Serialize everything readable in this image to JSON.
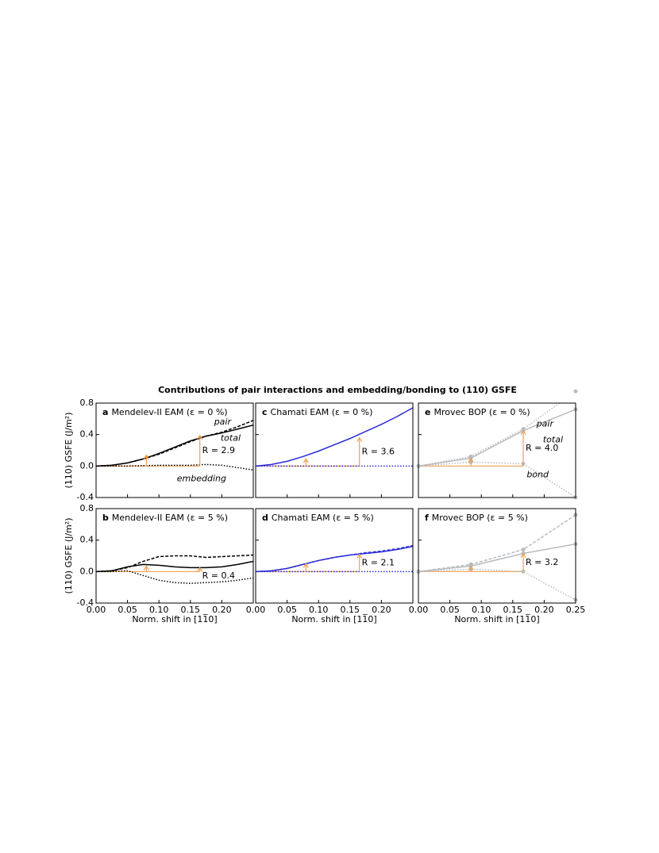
{
  "title": "Contributions of pair interactions and embedding/bonding to (110) GSFE",
  "chart_data": [
    {
      "type": "line",
      "label": "a",
      "title": "Mendelev-II EAM (ε = 0 %)",
      "ylabel": "(110) GSFE (J/m²)",
      "x": [
        0,
        0.025,
        0.05,
        0.075,
        0.1,
        0.125,
        0.15,
        0.175,
        0.2,
        0.225,
        0.25
      ],
      "xlim": [
        0,
        0.25
      ],
      "ylim": [
        -0.4,
        0.8
      ],
      "yticks": [
        {
          "value": 0.8,
          "label": "0.8"
        },
        {
          "value": 0.4,
          "label": "0.4"
        },
        {
          "value": 0,
          "label": "0.0"
        },
        {
          "value": -0.4,
          "label": "-0.4"
        }
      ],
      "series": [
        {
          "name": "total",
          "color": "#000000",
          "style": "solid",
          "values": [
            0,
            0.01,
            0.04,
            0.09,
            0.16,
            0.24,
            0.32,
            0.38,
            0.42,
            0.47,
            0.52
          ]
        },
        {
          "name": "pair",
          "color": "#000000",
          "style": "dashed",
          "values": [
            0,
            0.01,
            0.04,
            0.09,
            0.15,
            0.23,
            0.31,
            0.38,
            0.43,
            0.5,
            0.58
          ]
        },
        {
          "name": "embedding",
          "color": "#000000",
          "style": "dotted",
          "values": [
            0,
            0,
            0,
            0.005,
            0.01,
            0.01,
            0.01,
            0.02,
            0.01,
            -0.02,
            -0.05
          ]
        }
      ],
      "arrows": [
        {
          "x": 0.08,
          "y": [
            0,
            0.14
          ]
        },
        {
          "x": 0.165,
          "y": [
            0,
            0.39
          ]
        }
      ],
      "arrow_color": "#f0a050",
      "annotation": "R = 2.9"
    },
    {
      "type": "line",
      "label": "b",
      "title": "Mendelev-II EAM (ε = 5 %)",
      "ylabel": "(110) GSFE (J/m²)",
      "xlabel": "Norm. shift in [11̅0]",
      "x": [
        0,
        0.025,
        0.05,
        0.075,
        0.1,
        0.125,
        0.15,
        0.175,
        0.2,
        0.225,
        0.25
      ],
      "xlim": [
        0,
        0.25
      ],
      "ylim": [
        -0.4,
        0.8
      ],
      "yticks": [
        {
          "value": 0.8,
          "label": "0.8"
        },
        {
          "value": 0.4,
          "label": "0.4"
        },
        {
          "value": 0,
          "label": "0.0"
        },
        {
          "value": -0.4,
          "label": "-0.4"
        }
      ],
      "xticks": [
        {
          "value": 0,
          "label": "0.00"
        },
        {
          "value": 0.05,
          "label": "0.05"
        },
        {
          "value": 0.1,
          "label": "0.10"
        },
        {
          "value": 0.15,
          "label": "0.15"
        },
        {
          "value": 0.2,
          "label": "0.20"
        }
      ],
      "series": [
        {
          "color": "#000000",
          "style": "solid",
          "values": [
            0,
            0.01,
            0.06,
            0.09,
            0.08,
            0.06,
            0.05,
            0.05,
            0.06,
            0.09,
            0.13
          ]
        },
        {
          "color": "#000000",
          "style": "dashed",
          "values": [
            0,
            0.01,
            0.05,
            0.13,
            0.19,
            0.2,
            0.2,
            0.18,
            0.19,
            0.2,
            0.21
          ]
        },
        {
          "color": "#000000",
          "style": "dotted",
          "values": [
            0,
            0,
            0.01,
            -0.05,
            -0.11,
            -0.14,
            -0.15,
            -0.14,
            -0.13,
            -0.11,
            -0.08
          ]
        }
      ],
      "arrows": [
        {
          "x": 0.08,
          "y": [
            0,
            0.07
          ]
        },
        {
          "x": 0.165,
          "y": [
            0,
            0.05
          ]
        }
      ],
      "arrow_color": "#f0a050",
      "annotation": "R = 0.4"
    },
    {
      "type": "line",
      "label": "c",
      "title": "Chamati EAM (ε = 0 %)",
      "x": [
        0,
        0.025,
        0.05,
        0.075,
        0.1,
        0.125,
        0.15,
        0.175,
        0.2,
        0.225,
        0.25
      ],
      "xlim": [
        0,
        0.25
      ],
      "ylim": [
        -0.4,
        0.8
      ],
      "series": [
        {
          "color": "#2b2bdb",
          "style": "solid",
          "values": [
            0,
            0.02,
            0.06,
            0.12,
            0.19,
            0.27,
            0.35,
            0.44,
            0.53,
            0.63,
            0.74
          ]
        },
        {
          "color": "#2b2bdb",
          "style": "dotted",
          "values": [
            0,
            0,
            0,
            0,
            0,
            0,
            0,
            0,
            0,
            0,
            0
          ]
        }
      ],
      "arrows": [
        {
          "x": 0.08,
          "y": [
            0,
            0.09
          ]
        },
        {
          "x": 0.165,
          "y": [
            0,
            0.36
          ]
        }
      ],
      "arrow_color": "#f0a050",
      "annotation": "R = 3.6"
    },
    {
      "type": "line",
      "label": "d",
      "title": "Chamati EAM (ε = 5 %)",
      "xlabel": "Norm. shift in [11̅0]",
      "x": [
        0,
        0.025,
        0.05,
        0.075,
        0.1,
        0.125,
        0.15,
        0.175,
        0.2,
        0.225,
        0.25
      ],
      "xlim": [
        0,
        0.25
      ],
      "ylim": [
        -0.4,
        0.8
      ],
      "xticks": [
        {
          "value": 0,
          "label": "0.00"
        },
        {
          "value": 0.05,
          "label": "0.05"
        },
        {
          "value": 0.1,
          "label": "0.10"
        },
        {
          "value": 0.15,
          "label": "0.15"
        },
        {
          "value": 0.2,
          "label": "0.20"
        }
      ],
      "series": [
        {
          "color": "#2b2bdb",
          "style": "solid",
          "values": [
            0,
            0.01,
            0.04,
            0.09,
            0.14,
            0.18,
            0.21,
            0.23,
            0.25,
            0.28,
            0.32
          ]
        },
        {
          "color": "#2b2bdb",
          "style": "dashed",
          "values": [
            0,
            0.01,
            0.04,
            0.09,
            0.14,
            0.18,
            0.21,
            0.24,
            0.26,
            0.29,
            0.33
          ]
        },
        {
          "color": "#2b2bdb",
          "style": "dotted",
          "values": [
            0,
            0,
            0,
            0,
            0,
            0,
            0,
            0,
            0,
            0,
            0
          ]
        }
      ],
      "arrows": [
        {
          "x": 0.08,
          "y": [
            0,
            0.1
          ]
        },
        {
          "x": 0.165,
          "y": [
            0,
            0.22
          ]
        }
      ],
      "arrow_color": "#f0a050",
      "annotation": "R = 2.1"
    },
    {
      "type": "line",
      "label": "e",
      "title": "Mrovec BOP (ε = 0 %)",
      "x": [
        0,
        0.0833,
        0.1667,
        0.25
      ],
      "xlim": [
        0,
        0.25
      ],
      "ylim": [
        -0.4,
        0.8
      ],
      "series": [
        {
          "name": "total",
          "color": "#b8bcbf",
          "style": "solid",
          "values": [
            0,
            0.1,
            0.45,
            0.72
          ]
        },
        {
          "name": "pair",
          "color": "#b8bcbf",
          "style": "dotted",
          "values": [
            0,
            0.12,
            0.47,
            0.95
          ]
        },
        {
          "name": "bond",
          "color": "#b8bcbf",
          "style": "dotted",
          "values": [
            0,
            0.05,
            0.03,
            -0.4
          ]
        }
      ],
      "arrows": [
        {
          "x": 0.0833,
          "y": [
            0,
            0.1
          ]
        },
        {
          "x": 0.1667,
          "y": [
            0,
            0.45
          ]
        }
      ],
      "arrow_color": "#f0a050",
      "annotation": "R = 4.0"
    },
    {
      "type": "line",
      "label": "f",
      "title": "Mrovec BOP (ε = 5 %)",
      "xlabel": "Norm. shift in [11̅0]",
      "x": [
        0,
        0.0833,
        0.1667,
        0.25
      ],
      "xlim": [
        0,
        0.25
      ],
      "ylim": [
        -0.4,
        0.8
      ],
      "xticks": [
        {
          "value": 0,
          "label": "0.00"
        },
        {
          "value": 0.05,
          "label": "0.05"
        },
        {
          "value": 0.1,
          "label": "0.10"
        },
        {
          "value": 0.15,
          "label": "0.15"
        },
        {
          "value": 0.2,
          "label": "0.20"
        },
        {
          "value": 0.25,
          "label": "0.25"
        }
      ],
      "series": [
        {
          "color": "#b8bcbf",
          "style": "solid",
          "values": [
            0,
            0.07,
            0.23,
            0.35
          ]
        },
        {
          "color": "#b8bcbf",
          "style": "dashed",
          "values": [
            0,
            0.09,
            0.28,
            0.72
          ]
        },
        {
          "color": "#b8bcbf",
          "style": "dotted",
          "values": [
            0,
            0.03,
            0,
            -0.36
          ]
        }
      ],
      "arrows": [
        {
          "x": 0.0833,
          "y": [
            0,
            0.07
          ]
        },
        {
          "x": 0.1667,
          "y": [
            0,
            0.23
          ]
        }
      ],
      "arrow_color": "#f0a050",
      "annotation": "R = 3.2"
    }
  ]
}
